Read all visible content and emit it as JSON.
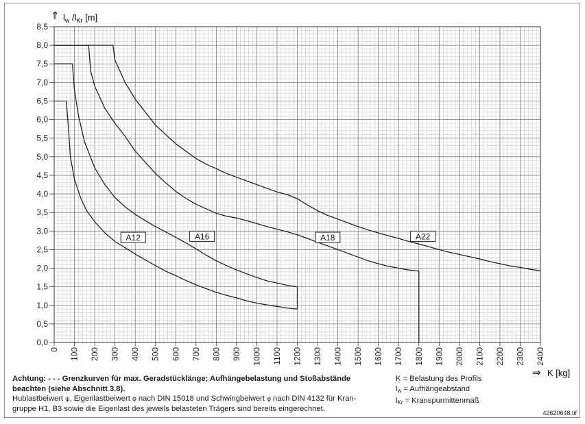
{
  "chart_data": {
    "type": "line",
    "y_axis_label_main": "l",
    "y_axis_label_sub1": "w",
    "y_axis_label_mid": " /l",
    "y_axis_label_sub2": "Kr",
    "y_axis_label_unit": " [m]",
    "x_axis_label": "K [kg]",
    "arrow_y": "⇑",
    "arrow_x": "⇒",
    "xlim": [
      0,
      2400
    ],
    "ylim": [
      0,
      8.5
    ],
    "x_ticks": [
      "0",
      "100",
      "200",
      "300",
      "400",
      "500",
      "600",
      "700",
      "800",
      "900",
      "1000",
      "1100",
      "1200",
      "1300",
      "1400",
      "1500",
      "1600",
      "1700",
      "1800",
      "1900",
      "2000",
      "2100",
      "2200",
      "2300",
      "2400"
    ],
    "y_ticks": [
      "0,0",
      "0,5",
      "1,0",
      "1,5",
      "2,0",
      "2,5",
      "3,0",
      "3,5",
      "4,0",
      "4,5",
      "5,0",
      "5,5",
      "6,0",
      "6,5",
      "7,0",
      "7,5",
      "8,0",
      "8,5"
    ],
    "y_tick_values": [
      0,
      0.5,
      1,
      1.5,
      2,
      2.5,
      3,
      3.5,
      4,
      4.5,
      5,
      5.5,
      6,
      6.5,
      7,
      7.5,
      8,
      8.5
    ],
    "grid": "on",
    "series": [
      {
        "name": "A12",
        "label_at": [
          390,
          2.82
        ],
        "points": [
          [
            0,
            6.5
          ],
          [
            60,
            6.5
          ],
          [
            70,
            5.8
          ],
          [
            80,
            5.0
          ],
          [
            100,
            4.4
          ],
          [
            130,
            3.9
          ],
          [
            160,
            3.55
          ],
          [
            200,
            3.25
          ],
          [
            250,
            2.95
          ],
          [
            300,
            2.72
          ],
          [
            350,
            2.55
          ],
          [
            400,
            2.38
          ],
          [
            450,
            2.22
          ],
          [
            500,
            2.07
          ],
          [
            550,
            1.92
          ],
          [
            600,
            1.8
          ],
          [
            650,
            1.67
          ],
          [
            700,
            1.55
          ],
          [
            750,
            1.45
          ],
          [
            800,
            1.35
          ],
          [
            850,
            1.27
          ],
          [
            900,
            1.2
          ],
          [
            950,
            1.12
          ],
          [
            1000,
            1.06
          ],
          [
            1050,
            1.01
          ],
          [
            1100,
            0.97
          ],
          [
            1150,
            0.93
          ],
          [
            1200,
            0.9
          ]
        ]
      },
      {
        "name": "A16",
        "label_at": [
          730,
          2.85
        ],
        "points": [
          [
            0,
            7.5
          ],
          [
            90,
            7.5
          ],
          [
            100,
            6.8
          ],
          [
            120,
            6.1
          ],
          [
            150,
            5.4
          ],
          [
            200,
            4.7
          ],
          [
            250,
            4.25
          ],
          [
            300,
            3.9
          ],
          [
            350,
            3.65
          ],
          [
            400,
            3.45
          ],
          [
            450,
            3.28
          ],
          [
            500,
            3.12
          ],
          [
            550,
            2.98
          ],
          [
            600,
            2.83
          ],
          [
            650,
            2.68
          ],
          [
            700,
            2.52
          ],
          [
            750,
            2.35
          ],
          [
            800,
            2.2
          ],
          [
            850,
            2.07
          ],
          [
            900,
            1.95
          ],
          [
            950,
            1.85
          ],
          [
            1000,
            1.75
          ],
          [
            1050,
            1.66
          ],
          [
            1100,
            1.6
          ],
          [
            1150,
            1.54
          ],
          [
            1200,
            1.5
          ],
          [
            1200,
            0.9
          ]
        ]
      },
      {
        "name": "A18",
        "label_at": [
          1350,
          2.82
        ],
        "points": [
          [
            0,
            8.0
          ],
          [
            170,
            8.0
          ],
          [
            180,
            7.3
          ],
          [
            200,
            6.9
          ],
          [
            250,
            6.3
          ],
          [
            300,
            5.9
          ],
          [
            350,
            5.55
          ],
          [
            400,
            5.15
          ],
          [
            450,
            4.85
          ],
          [
            500,
            4.55
          ],
          [
            550,
            4.3
          ],
          [
            600,
            4.07
          ],
          [
            650,
            3.88
          ],
          [
            700,
            3.72
          ],
          [
            750,
            3.6
          ],
          [
            800,
            3.48
          ],
          [
            850,
            3.4
          ],
          [
            900,
            3.35
          ],
          [
            950,
            3.28
          ],
          [
            1000,
            3.2
          ],
          [
            1050,
            3.12
          ],
          [
            1100,
            3.05
          ],
          [
            1150,
            2.98
          ],
          [
            1200,
            2.9
          ],
          [
            1250,
            2.8
          ],
          [
            1300,
            2.7
          ],
          [
            1350,
            2.6
          ],
          [
            1400,
            2.5
          ],
          [
            1450,
            2.4
          ],
          [
            1500,
            2.3
          ],
          [
            1550,
            2.2
          ],
          [
            1600,
            2.12
          ],
          [
            1650,
            2.05
          ],
          [
            1700,
            2.0
          ],
          [
            1750,
            1.95
          ],
          [
            1800,
            1.92
          ],
          [
            1800,
            0.0
          ]
        ]
      },
      {
        "name": "A22",
        "label_at": [
          1820,
          2.85
        ],
        "points": [
          [
            0,
            8.0
          ],
          [
            290,
            8.0
          ],
          [
            300,
            7.6
          ],
          [
            350,
            7.0
          ],
          [
            400,
            6.55
          ],
          [
            450,
            6.2
          ],
          [
            500,
            5.85
          ],
          [
            550,
            5.6
          ],
          [
            600,
            5.35
          ],
          [
            650,
            5.15
          ],
          [
            700,
            4.95
          ],
          [
            750,
            4.8
          ],
          [
            800,
            4.68
          ],
          [
            850,
            4.55
          ],
          [
            900,
            4.45
          ],
          [
            950,
            4.35
          ],
          [
            1000,
            4.25
          ],
          [
            1050,
            4.15
          ],
          [
            1100,
            4.05
          ],
          [
            1150,
            3.98
          ],
          [
            1200,
            3.87
          ],
          [
            1250,
            3.7
          ],
          [
            1300,
            3.55
          ],
          [
            1350,
            3.42
          ],
          [
            1400,
            3.32
          ],
          [
            1450,
            3.22
          ],
          [
            1500,
            3.12
          ],
          [
            1550,
            3.03
          ],
          [
            1600,
            2.95
          ],
          [
            1650,
            2.87
          ],
          [
            1700,
            2.8
          ],
          [
            1750,
            2.72
          ],
          [
            1800,
            2.65
          ],
          [
            1850,
            2.58
          ],
          [
            1900,
            2.5
          ],
          [
            1950,
            2.43
          ],
          [
            2000,
            2.37
          ],
          [
            2050,
            2.31
          ],
          [
            2100,
            2.25
          ],
          [
            2150,
            2.18
          ],
          [
            2200,
            2.12
          ],
          [
            2250,
            2.06
          ],
          [
            2300,
            2.02
          ],
          [
            2350,
            1.97
          ],
          [
            2400,
            1.93
          ]
        ]
      }
    ]
  },
  "notes": {
    "line1": "Achtung: - - - Grenzkurven für max. Geradstücklänge; Aufhängebelastung und Stoßabstände",
    "line2": "beachten (siehe Abschnitt 3.8).",
    "line3a": "Hublastbeiwert ",
    "psi": "ψ",
    "line3b": ", Eigenlastbeiwert ",
    "phi1": "φ",
    "line3c": " nach DIN 15018 und Schwingbeiwert ",
    "phi2": "φ",
    "line3d": " nach DIN 4132 für Kran-",
    "line4": "gruppe H1, B3 sowie die Eigenlast des jeweils belasteten Trägers sind bereits eingerechnet."
  },
  "legend": {
    "k": "K = Belastung des Profils",
    "lw_main": "l",
    "lw_sub": "w",
    "lw_text": " = Aufhängeabstand",
    "lkr_main": "l",
    "lkr_sub": "Kr",
    "lkr_text": " = Kranspurmittenmaß"
  },
  "file_id": "42620648.tif"
}
